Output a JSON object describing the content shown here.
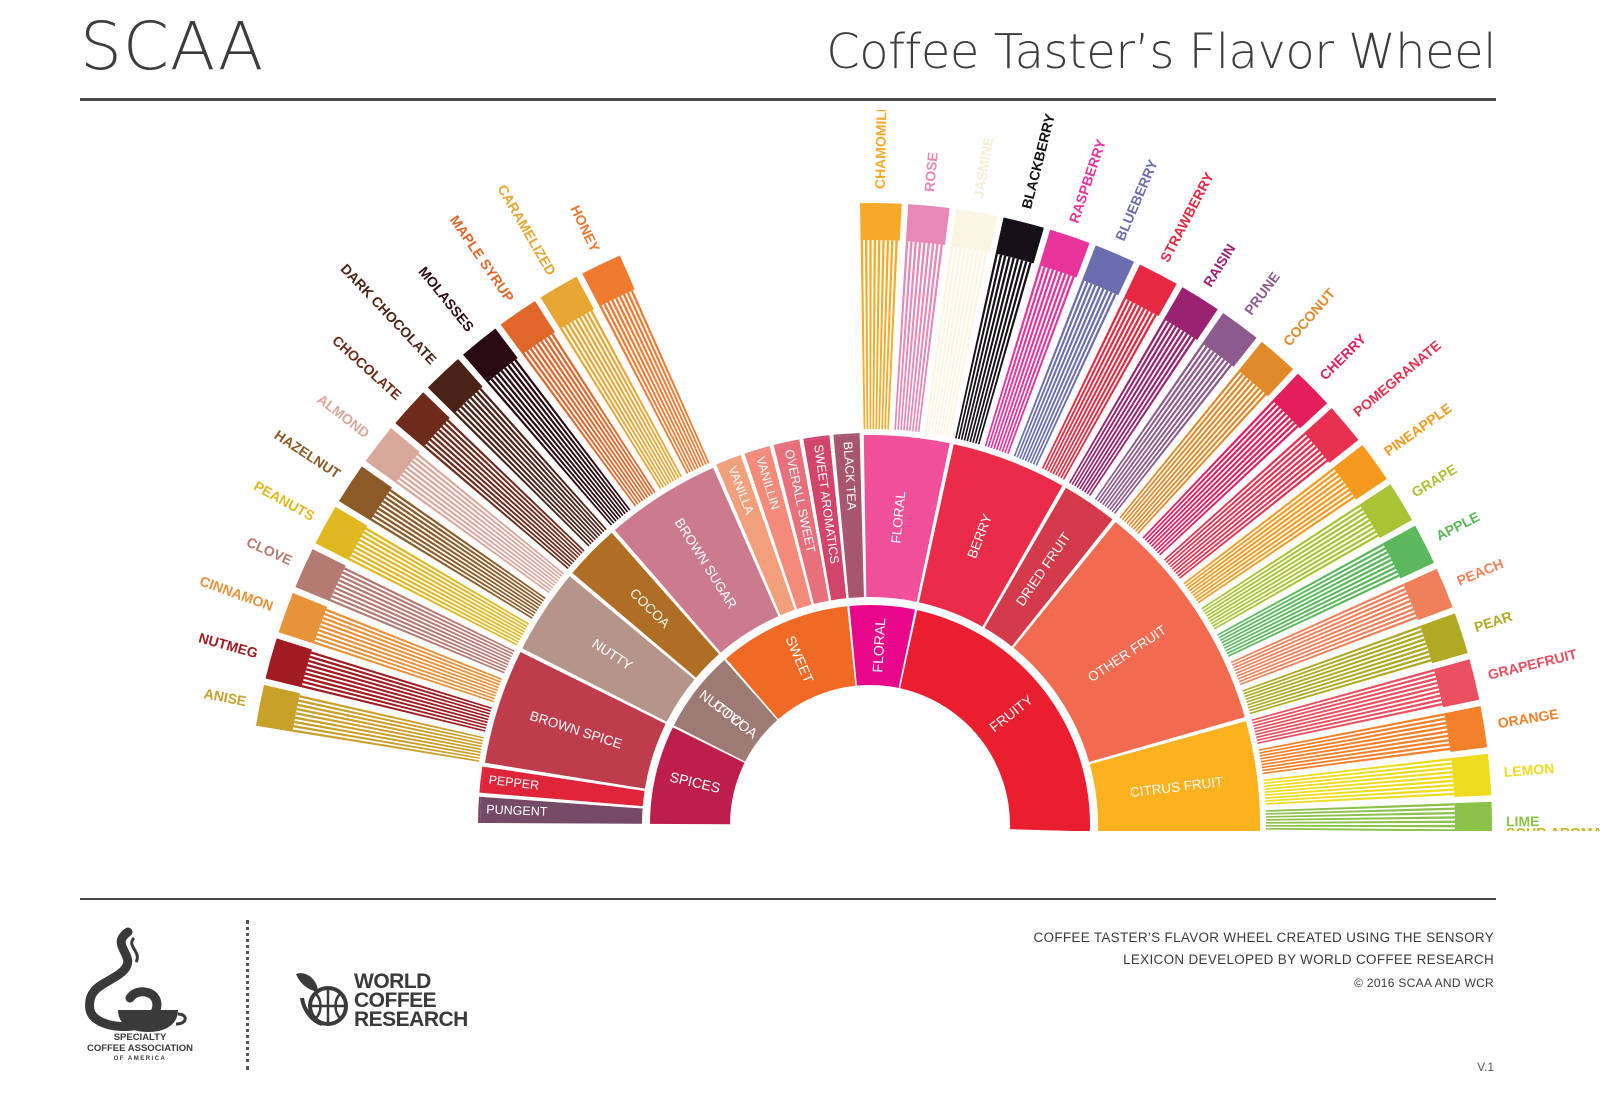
{
  "header": {
    "brand": "SCAA",
    "title": "Coffee Taster’s Flavor Wheel"
  },
  "wheel": {
    "tiers": [
      {
        "name": "SPICES",
        "color": "#be1e4b",
        "children": [
          {
            "name": "PUNGENT",
            "color": "#744a66",
            "children": []
          },
          {
            "name": "PEPPER",
            "color": "#e0243a",
            "children": []
          },
          {
            "name": "BROWN SPICE",
            "color": "#be3c4c",
            "children": [
              {
                "name": "ANISE",
                "color": "#c9a02a"
              },
              {
                "name": "NUTMEG",
                "color": "#a01c22"
              },
              {
                "name": "CINNAMON",
                "color": "#e8923a"
              },
              {
                "name": "CLOVE",
                "color": "#b57a72"
              }
            ]
          }
        ]
      },
      {
        "name": "NUTTY/\nCOCOA",
        "color": "#9e7a74",
        "children": [
          {
            "name": "NUTTY",
            "color": "#b5958a",
            "children": [
              {
                "name": "PEANUTS",
                "color": "#e0b820"
              },
              {
                "name": "HAZELNUT",
                "color": "#8c5a26"
              },
              {
                "name": "ALMOND",
                "color": "#d9a89c"
              }
            ]
          },
          {
            "name": "COCOA",
            "color": "#b06e24",
            "children": [
              {
                "name": "CHOCOLATE",
                "color": "#6e2a1a"
              },
              {
                "name": "DARK CHOCOLATE",
                "color": "#4a2216"
              }
            ]
          }
        ]
      },
      {
        "name": "SWEET",
        "color": "#f06a26",
        "children": [
          {
            "name": "BROWN SUGAR",
            "color": "#cc7a8e",
            "children": [
              {
                "name": "MOLASSES",
                "color": "#2a0a12"
              },
              {
                "name": "MAPLE SYRUP",
                "color": "#e0662a"
              },
              {
                "name": "CARAMELIZED",
                "color": "#e8a632"
              },
              {
                "name": "HONEY",
                "color": "#f07a30"
              }
            ]
          },
          {
            "name": "VANILLA",
            "color": "#f2a07c",
            "children": []
          },
          {
            "name": "VANILLIN",
            "color": "#f48a7a",
            "children": []
          },
          {
            "name": "OVERALL SWEET",
            "color": "#e8707c",
            "children": []
          },
          {
            "name": "SWEET AROMATICS",
            "color": "#d2446a",
            "children": []
          }
        ]
      },
      {
        "name": "FLORAL",
        "color": "#e8068a",
        "children": [
          {
            "name": "BLACK TEA",
            "color": "#a8566e",
            "children": []
          },
          {
            "name": "FLORAL",
            "color": "#f0509a",
            "children": [
              {
                "name": "CHAMOMILE",
                "color": "#f7aa28"
              },
              {
                "name": "ROSE",
                "color": "#e888b4"
              },
              {
                "name": "JASMINE",
                "color": "#fbf6e2"
              }
            ]
          }
        ]
      },
      {
        "name": "FRUITY",
        "color": "#ea1e2e",
        "children": [
          {
            "name": "BERRY",
            "color": "#ea2c48",
            "children": [
              {
                "name": "BLACKBERRY",
                "color": "#161018"
              },
              {
                "name": "RASPBERRY",
                "color": "#e8349a"
              },
              {
                "name": "BLUEBERRY",
                "color": "#6a6eb0"
              },
              {
                "name": "STRAWBERRY",
                "color": "#e62840"
              }
            ]
          },
          {
            "name": "DRIED FRUIT",
            "color": "#d43a4a",
            "children": [
              {
                "name": "RAISIN",
                "color": "#9a2270"
              },
              {
                "name": "PRUNE",
                "color": "#8c5a8c"
              }
            ]
          },
          {
            "name": "OTHER FRUIT",
            "color": "#f26a50",
            "children": [
              {
                "name": "COCONUT",
                "color": "#e08a2a"
              },
              {
                "name": "CHERRY",
                "color": "#e41e5a"
              },
              {
                "name": "POMEGRANATE",
                "color": "#e83050"
              },
              {
                "name": "PINEAPPLE",
                "color": "#f59a1e"
              },
              {
                "name": "GRAPE",
                "color": "#a8c432"
              },
              {
                "name": "APPLE",
                "color": "#5cb85c"
              },
              {
                "name": "PEACH",
                "color": "#f0805a"
              },
              {
                "name": "PEAR",
                "color": "#b0aa22"
              }
            ]
          },
          {
            "name": "CITRUS FRUIT",
            "color": "#fbb21e",
            "children": [
              {
                "name": "GRAPEFRUIT",
                "color": "#ea5062"
              },
              {
                "name": "ORANGE",
                "color": "#f4812a"
              },
              {
                "name": "LEMON",
                "color": "#efdc1e"
              },
              {
                "name": "LIME",
                "color": "#8cc24a"
              }
            ]
          }
        ]
      }
    ],
    "partial_label": "SOUR AROMATICS"
  },
  "footer": {
    "credit_line1": "COFFEE TASTER’S FLAVOR WHEEL CREATED USING THE SENSORY",
    "credit_line2": "LEXICON DEVELOPED BY WORLD COFFEE RESEARCH",
    "copyright": "© 2016 SCAA AND WCR",
    "version": "V.1",
    "scaa_logo": {
      "line1": "SPECIALTY",
      "line2": "COFFEE ASSOCIATION",
      "line3": "OF AMERICA"
    },
    "wcr_logo": {
      "line1": "WORLD",
      "line2": "COFFEE",
      "line3": "RESEARCH"
    }
  }
}
